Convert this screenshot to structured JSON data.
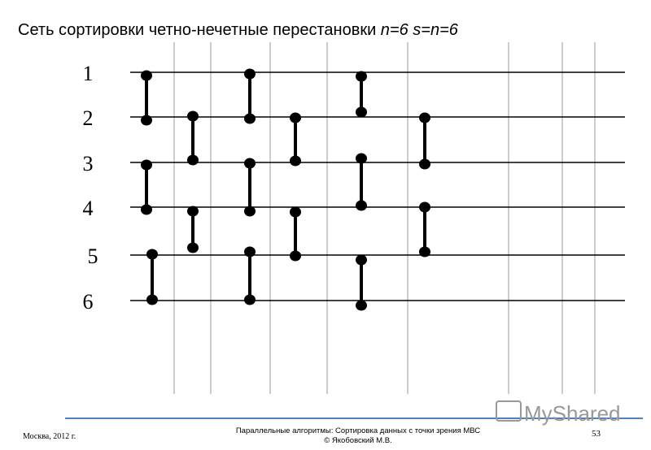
{
  "title": {
    "text": "Сеть сортировки четно-нечетные перестановки",
    "params": "n=6 s=n=6"
  },
  "wires": {
    "labels": [
      "1",
      "2",
      "3",
      "4",
      "5",
      "6"
    ]
  },
  "footer": {
    "place": "Москва, 2012 г.",
    "course": "Параллельные алгоритмы: Сортировка данных с точки зрения МВС",
    "author": "© Якобовский М.В.",
    "page": "53"
  },
  "watermark": "MyShared"
}
